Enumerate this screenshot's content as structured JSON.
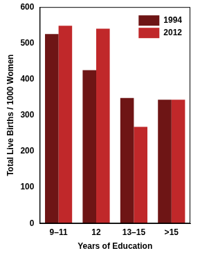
{
  "chart_data": {
    "type": "bar",
    "categories": [
      "9–11",
      "12",
      "13–15",
      ">15"
    ],
    "series": [
      {
        "name": "1994",
        "color": "#6e1515",
        "values": [
          525,
          425,
          348,
          343
        ]
      },
      {
        "name": "2012",
        "color": "#c0282a",
        "values": [
          548,
          540,
          268,
          343
        ]
      }
    ],
    "x_label": "Years of Education",
    "y_label": "Total Live Births / 1000 Women",
    "ylim": [
      0,
      600
    ],
    "yticks": [
      0,
      100,
      200,
      300,
      400,
      500,
      600
    ],
    "grid": false,
    "legend": "upper right"
  }
}
